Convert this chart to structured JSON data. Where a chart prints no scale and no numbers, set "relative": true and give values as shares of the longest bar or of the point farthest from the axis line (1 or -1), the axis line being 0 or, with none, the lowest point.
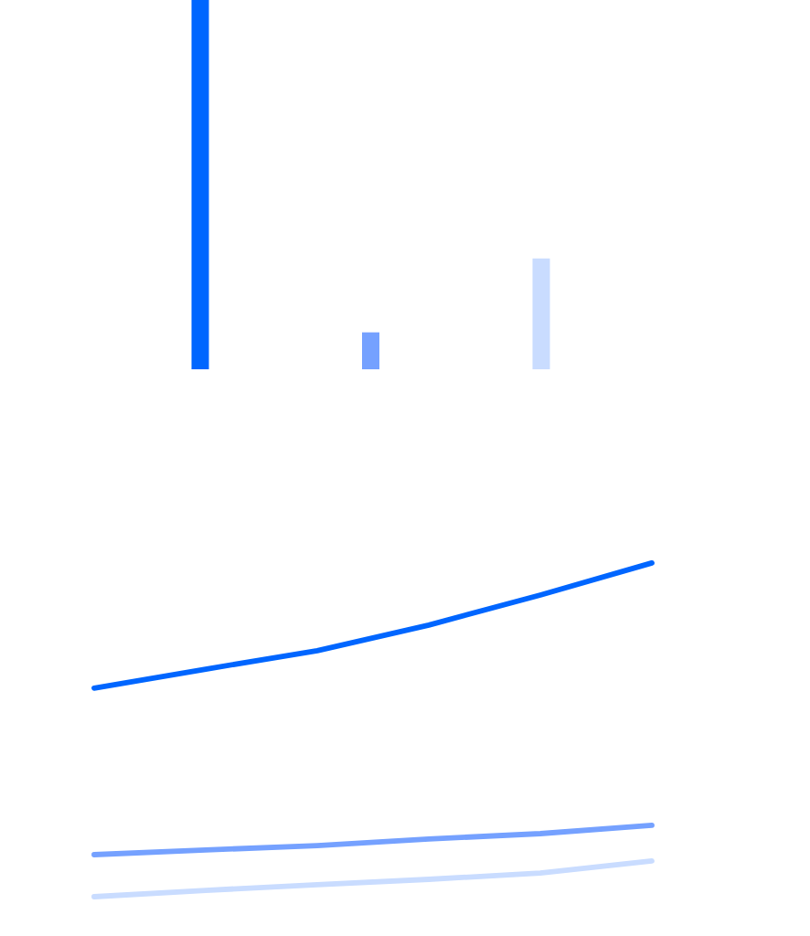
{
  "chart_data": [
    {
      "type": "bar",
      "relative": true,
      "categories": [
        null,
        null,
        null
      ],
      "values": [
        1,
        0.1,
        0.3
      ],
      "colors": [
        "#0066ff",
        "#75a1ff",
        "#c9dcff"
      ]
    },
    {
      "type": "line",
      "relative": true,
      "categories": [
        null,
        null,
        null,
        null,
        null,
        null
      ],
      "line_style": "solid",
      "series": [
        {
          "color": "#0066ff",
          "values": [
            0.625,
            0.682,
            0.737,
            0.814,
            0.904,
            1
          ]
        },
        {
          "color": "#75a1ff",
          "values": [
            0.126,
            0.14,
            0.153,
            0.173,
            0.189,
            0.214
          ]
        },
        {
          "color": "#c9dcff",
          "values": [
            0,
            0.019,
            0.036,
            0.052,
            0.071,
            0.107
          ]
        }
      ]
    }
  ]
}
